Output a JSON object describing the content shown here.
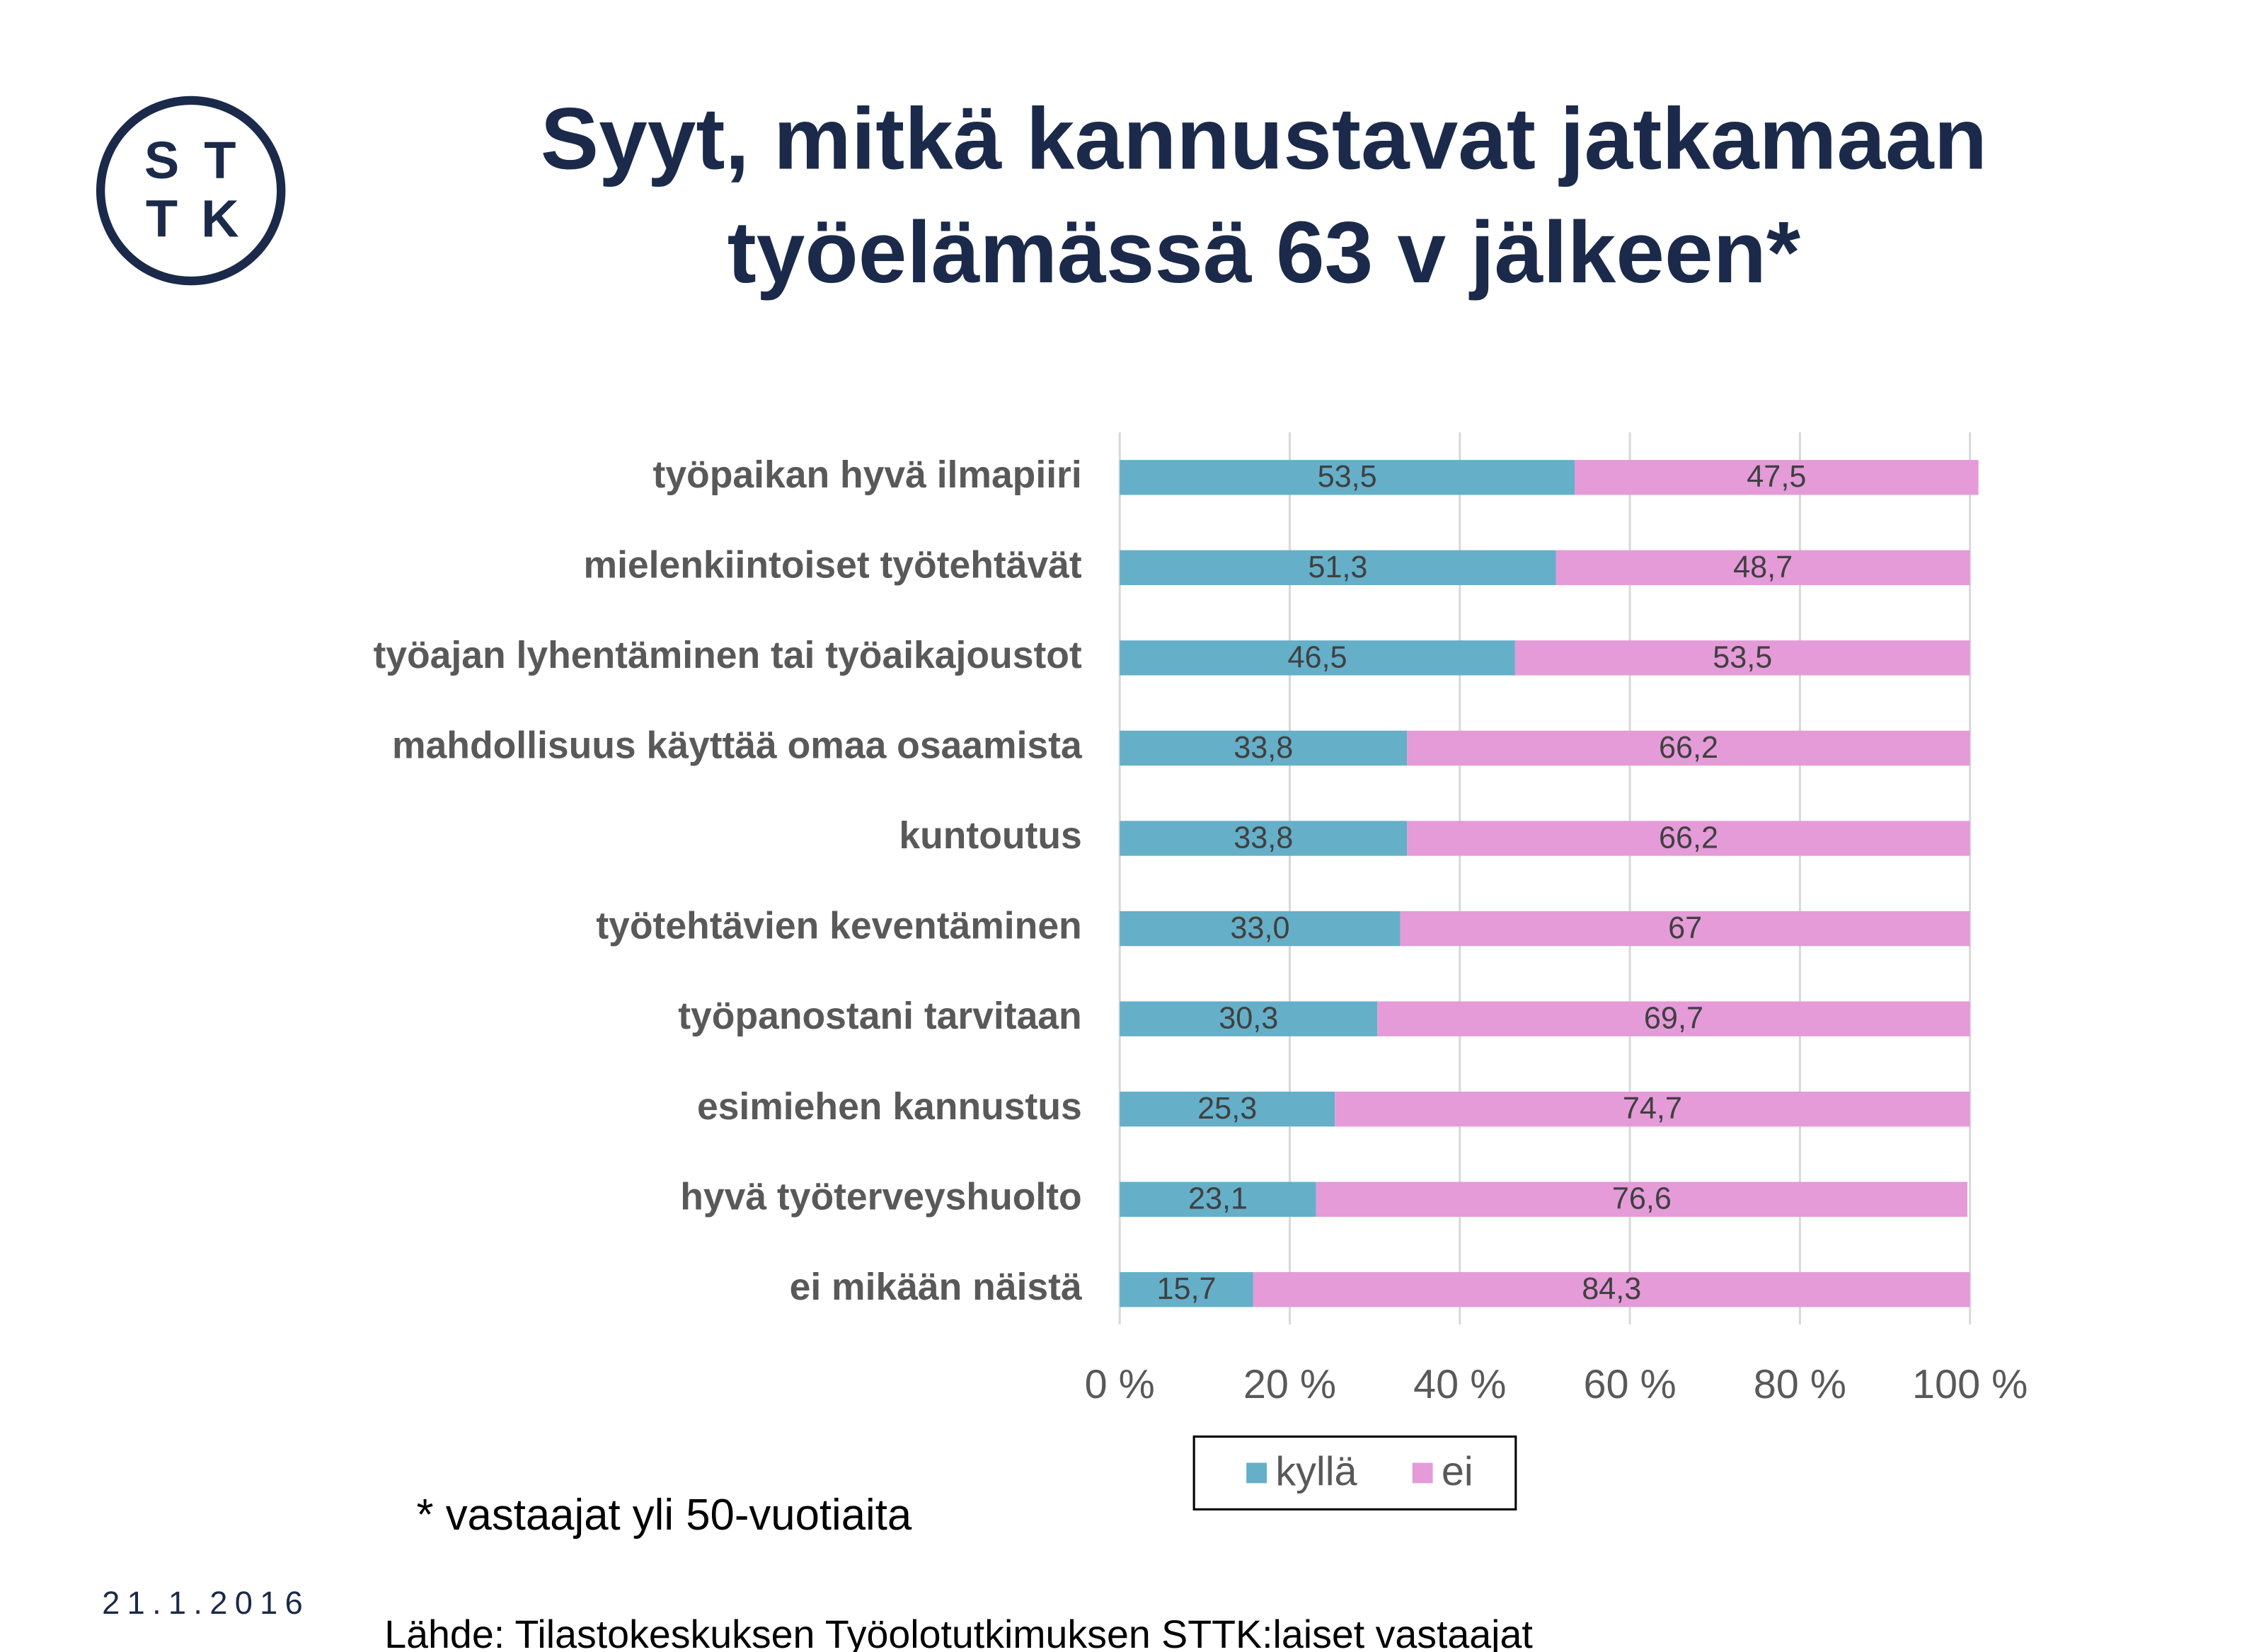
{
  "chart_data": {
    "type": "stacked_barh",
    "title": [
      "Syyt, mitkä kannustavat jatkamaan",
      "työelämässä 63 v jälkeen*"
    ],
    "logo": [
      "S",
      "T",
      "T",
      "K"
    ],
    "categories": [
      "työpaikan hyvä ilmapiiri",
      "mielenkiintoiset työtehtävät",
      "työajan lyhentäminen tai työaikajoustot",
      "mahdollisuus käyttää omaa osaamista",
      "kuntoutus",
      "työtehtävien keventäminen",
      "työpanostani tarvitaan",
      "esimiehen kannustus",
      "hyvä työterveyshuolto",
      "ei mikään näistä"
    ],
    "series": [
      {
        "name": "kyllä",
        "color": "#65afc9",
        "values": [
          53.5,
          51.3,
          46.5,
          33.8,
          33.8,
          33.0,
          30.3,
          25.3,
          23.1,
          15.7
        ],
        "value_labels": [
          "53,5",
          "51,3",
          "46,5",
          "33,8",
          "33,8",
          "33,0",
          "30,3",
          "25,3",
          "23,1",
          "15,7"
        ]
      },
      {
        "name": "ei",
        "color": "#e49bd8",
        "values": [
          47.5,
          48.7,
          53.5,
          66.2,
          66.2,
          67,
          69.7,
          74.7,
          76.6,
          84.3
        ],
        "value_labels": [
          "47,5",
          "48,7",
          "53,5",
          "66,2",
          "66,2",
          "67",
          "69,7",
          "74,7",
          "76,6",
          "84,3"
        ]
      }
    ],
    "xlim": [
      0,
      100
    ],
    "xticks": [
      {
        "value": 0,
        "label": "0 %"
      },
      {
        "value": 20,
        "label": "20 %"
      },
      {
        "value": 40,
        "label": "40 %"
      },
      {
        "value": 60,
        "label": "60 %"
      },
      {
        "value": 80,
        "label": "80 %"
      },
      {
        "value": 100,
        "label": "100 %"
      }
    ],
    "grid": true,
    "legend": "bottom",
    "footnote": "* vastaajat yli 50-vuotiaita",
    "date": "21.1.2016",
    "source": "Lähde: Tilastokeskuksen Työolotutkimuksen STTK:laiset vastaajat"
  }
}
